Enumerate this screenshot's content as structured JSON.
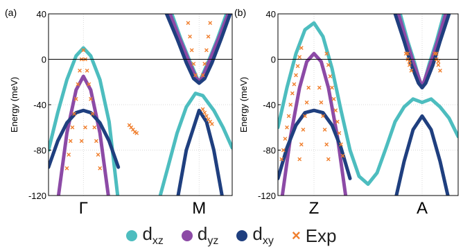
{
  "chart_data": [
    {
      "type": "line",
      "panel_label": "(a)",
      "title": "",
      "ylabel": "Energy (meV)",
      "xlabel": "",
      "ylim": [
        -120,
        40
      ],
      "xlim": [
        0,
        1
      ],
      "yticks": [
        40,
        0,
        -40,
        -80,
        -120
      ],
      "ytick_labels": [
        "40",
        "0",
        "-40",
        "-80",
        "-120"
      ],
      "high_symmetry": [
        {
          "label": "Γ",
          "x": 0.19
        },
        {
          "label": "M",
          "x": 0.82
        }
      ],
      "series": [
        {
          "key": "dxz",
          "x": [
            0.0,
            0.05,
            0.1,
            0.15,
            0.19,
            0.23,
            0.28,
            0.33,
            0.38
          ],
          "y": [
            -80,
            -47,
            -18,
            3,
            10,
            3,
            -18,
            -55,
            -125
          ]
        },
        {
          "key": "dyz",
          "x": [
            0.05,
            0.1,
            0.15,
            0.19,
            0.23,
            0.28,
            0.33
          ],
          "y": [
            -125,
            -65,
            -27,
            -15,
            -27,
            -65,
            -125
          ]
        },
        {
          "key": "dxy",
          "x": [
            0.0,
            0.05,
            0.1,
            0.15,
            0.19,
            0.23,
            0.28,
            0.33,
            0.38
          ],
          "y": [
            -95,
            -72,
            -56,
            -47,
            -45,
            -47,
            -56,
            -72,
            -95
          ]
        },
        {
          "key": "dxz",
          "x": [
            0.6,
            0.65,
            0.7,
            0.75,
            0.8,
            0.84,
            0.9,
            0.95,
            1.0
          ],
          "y": [
            -125,
            -95,
            -65,
            -42,
            -30,
            -32,
            -45,
            -60,
            -78
          ]
        },
        {
          "key": "dxy",
          "x": [
            0.7,
            0.75,
            0.8,
            0.82,
            0.86,
            0.9,
            0.95
          ],
          "y": [
            -125,
            -80,
            -55,
            -45,
            -55,
            -80,
            -125
          ]
        },
        {
          "key": "dyz",
          "x": [
            0.65,
            0.71,
            0.76,
            0.8,
            0.82,
            0.84,
            0.88,
            0.93,
            0.99
          ],
          "y": [
            45,
            20,
            0,
            -15,
            -20,
            -15,
            0,
            20,
            45
          ]
        },
        {
          "key": "dxz",
          "x": [
            0.66,
            0.72,
            0.77,
            0.81,
            0.82,
            0.83,
            0.87,
            0.92,
            0.98
          ],
          "y": [
            45,
            18,
            -2,
            -17,
            -20,
            -17,
            -2,
            18,
            45
          ]
        },
        {
          "key": "dxy",
          "x": [
            0.63,
            0.7,
            0.75,
            0.79,
            0.82,
            0.85,
            0.89,
            0.94,
            1.0
          ],
          "y": [
            45,
            18,
            -3,
            -17,
            -21,
            -17,
            -3,
            18,
            45
          ]
        }
      ],
      "exp": [
        {
          "x": 0.19,
          "y": 8
        },
        {
          "x": 0.18,
          "y": 0
        },
        {
          "x": 0.2,
          "y": 0
        },
        {
          "x": 0.17,
          "y": -10
        },
        {
          "x": 0.21,
          "y": -10
        },
        {
          "x": 0.16,
          "y": -22
        },
        {
          "x": 0.22,
          "y": -22
        },
        {
          "x": 0.15,
          "y": -35
        },
        {
          "x": 0.23,
          "y": -35
        },
        {
          "x": 0.14,
          "y": -48
        },
        {
          "x": 0.24,
          "y": -48
        },
        {
          "x": 0.13,
          "y": -60
        },
        {
          "x": 0.25,
          "y": -60
        },
        {
          "x": 0.12,
          "y": -72
        },
        {
          "x": 0.26,
          "y": -72
        },
        {
          "x": 0.11,
          "y": -84
        },
        {
          "x": 0.27,
          "y": -84
        },
        {
          "x": 0.1,
          "y": -96
        },
        {
          "x": 0.28,
          "y": -96
        },
        {
          "x": 0.18,
          "y": -72
        },
        {
          "x": 0.2,
          "y": -60
        },
        {
          "x": 0.44,
          "y": -58
        },
        {
          "x": 0.45,
          "y": -60
        },
        {
          "x": 0.46,
          "y": -62
        },
        {
          "x": 0.47,
          "y": -64
        },
        {
          "x": 0.48,
          "y": -65
        },
        {
          "x": 0.84,
          "y": -44
        },
        {
          "x": 0.85,
          "y": -47
        },
        {
          "x": 0.86,
          "y": -50
        },
        {
          "x": 0.87,
          "y": -53
        },
        {
          "x": 0.88,
          "y": -55
        },
        {
          "x": 0.89,
          "y": -57
        },
        {
          "x": 0.76,
          "y": 32
        },
        {
          "x": 0.77,
          "y": 20
        },
        {
          "x": 0.78,
          "y": 8
        },
        {
          "x": 0.79,
          "y": -4
        },
        {
          "x": 0.8,
          "y": -14
        },
        {
          "x": 0.84,
          "y": -14
        },
        {
          "x": 0.85,
          "y": -4
        },
        {
          "x": 0.86,
          "y": 8
        },
        {
          "x": 0.87,
          "y": 20
        },
        {
          "x": 0.88,
          "y": 32
        }
      ]
    },
    {
      "type": "line",
      "panel_label": "(b)",
      "title": "",
      "ylabel": "Energy (meV)",
      "xlabel": "",
      "ylim": [
        -120,
        40
      ],
      "xlim": [
        0,
        1
      ],
      "yticks": [
        40,
        0,
        -40,
        -80,
        -120
      ],
      "ytick_labels": [
        "40",
        "0",
        "-40",
        "-80",
        "-120"
      ],
      "high_symmetry": [
        {
          "label": "Z",
          "x": 0.2
        },
        {
          "label": "A",
          "x": 0.8
        }
      ],
      "series": [
        {
          "key": "dxz",
          "x": [
            0.0,
            0.05,
            0.1,
            0.15,
            0.2,
            0.25,
            0.3,
            0.35,
            0.4,
            0.45,
            0.5,
            0.55,
            0.6,
            0.65,
            0.7,
            0.75,
            0.8
          ],
          "y": [
            -60,
            -25,
            5,
            26,
            32,
            20,
            -8,
            -45,
            -80,
            -103,
            -110,
            -100,
            -78,
            -55,
            -42,
            -35,
            -38
          ]
        },
        {
          "key": "dxz",
          "x": [
            0.8,
            0.85,
            0.9,
            0.95,
            1.0
          ],
          "y": [
            -38,
            -35,
            -42,
            -52,
            -68
          ]
        },
        {
          "key": "dyz",
          "x": [
            0.02,
            0.07,
            0.12,
            0.16,
            0.2,
            0.24,
            0.28,
            0.33,
            0.38
          ],
          "y": [
            -125,
            -68,
            -25,
            -2,
            5,
            -2,
            -25,
            -68,
            -125
          ]
        },
        {
          "key": "dxy",
          "x": [
            0.0,
            0.05,
            0.1,
            0.15,
            0.2,
            0.25,
            0.3,
            0.35,
            0.4
          ],
          "y": [
            -105,
            -78,
            -58,
            -47,
            -45,
            -47,
            -58,
            -78,
            -105
          ]
        },
        {
          "key": "dxy",
          "x": [
            0.65,
            0.7,
            0.75,
            0.8,
            0.85,
            0.9,
            0.95
          ],
          "y": [
            -125,
            -90,
            -62,
            -50,
            -62,
            -90,
            -125
          ]
        },
        {
          "key": "dyz",
          "x": [
            0.66,
            0.71,
            0.75,
            0.79,
            0.8,
            0.81,
            0.85,
            0.89,
            0.94
          ],
          "y": [
            45,
            18,
            -2,
            -20,
            -25,
            -20,
            -2,
            18,
            45
          ]
        },
        {
          "key": "dxz",
          "x": [
            0.67,
            0.72,
            0.76,
            0.79,
            0.8,
            0.81,
            0.84,
            0.88,
            0.93
          ],
          "y": [
            45,
            16,
            -4,
            -21,
            -25,
            -21,
            -4,
            16,
            45
          ]
        },
        {
          "key": "dxy",
          "x": [
            0.64,
            0.7,
            0.74,
            0.78,
            0.8,
            0.82,
            0.86,
            0.9,
            0.96
          ],
          "y": [
            45,
            16,
            -5,
            -21,
            -25,
            -21,
            -5,
            16,
            45
          ]
        }
      ],
      "exp": [
        {
          "x": 0.13,
          "y": 10
        },
        {
          "x": 0.12,
          "y": 2
        },
        {
          "x": 0.11,
          "y": -6
        },
        {
          "x": 0.1,
          "y": -14
        },
        {
          "x": 0.09,
          "y": -22
        },
        {
          "x": 0.08,
          "y": -30
        },
        {
          "x": 0.07,
          "y": -40
        },
        {
          "x": 0.06,
          "y": -50
        },
        {
          "x": 0.05,
          "y": -60
        },
        {
          "x": 0.04,
          "y": -70
        },
        {
          "x": 0.03,
          "y": -80
        },
        {
          "x": 0.02,
          "y": -88
        },
        {
          "x": 0.27,
          "y": 5
        },
        {
          "x": 0.28,
          "y": -5
        },
        {
          "x": 0.29,
          "y": -15
        },
        {
          "x": 0.3,
          "y": -25
        },
        {
          "x": 0.31,
          "y": -35
        },
        {
          "x": 0.32,
          "y": -45
        },
        {
          "x": 0.33,
          "y": -55
        },
        {
          "x": 0.34,
          "y": -65
        },
        {
          "x": 0.35,
          "y": -75
        },
        {
          "x": 0.36,
          "y": -85
        },
        {
          "x": 0.17,
          "y": -25
        },
        {
          "x": 0.16,
          "y": -38
        },
        {
          "x": 0.15,
          "y": -50
        },
        {
          "x": 0.14,
          "y": -62
        },
        {
          "x": 0.13,
          "y": -75
        },
        {
          "x": 0.12,
          "y": -88
        },
        {
          "x": 0.23,
          "y": -25
        },
        {
          "x": 0.24,
          "y": -38
        },
        {
          "x": 0.25,
          "y": -50
        },
        {
          "x": 0.26,
          "y": -62
        },
        {
          "x": 0.27,
          "y": -75
        },
        {
          "x": 0.28,
          "y": -88
        },
        {
          "x": 0.71,
          "y": 5
        },
        {
          "x": 0.72,
          "y": 0
        },
        {
          "x": 0.73,
          "y": -5
        },
        {
          "x": 0.74,
          "y": -10
        },
        {
          "x": 0.72,
          "y": 5
        },
        {
          "x": 0.73,
          "y": -2
        },
        {
          "x": 0.87,
          "y": 5
        },
        {
          "x": 0.88,
          "y": 0
        },
        {
          "x": 0.89,
          "y": -5
        },
        {
          "x": 0.9,
          "y": -10
        },
        {
          "x": 0.88,
          "y": 5
        },
        {
          "x": 0.89,
          "y": -2
        }
      ]
    }
  ],
  "legend": [
    {
      "key": "dxz",
      "main": "d",
      "sub": "xz",
      "color": "#4dbdbf",
      "marker": "dot"
    },
    {
      "key": "dyz",
      "main": "d",
      "sub": "yz",
      "color": "#8c4aa6",
      "marker": "dot"
    },
    {
      "key": "dxy",
      "main": "d",
      "sub": "xy",
      "color": "#1f3f7f",
      "marker": "dot"
    },
    {
      "key": "exp",
      "main": "Exp",
      "sub": "",
      "color": "#f07f2e",
      "marker": "cross"
    }
  ]
}
